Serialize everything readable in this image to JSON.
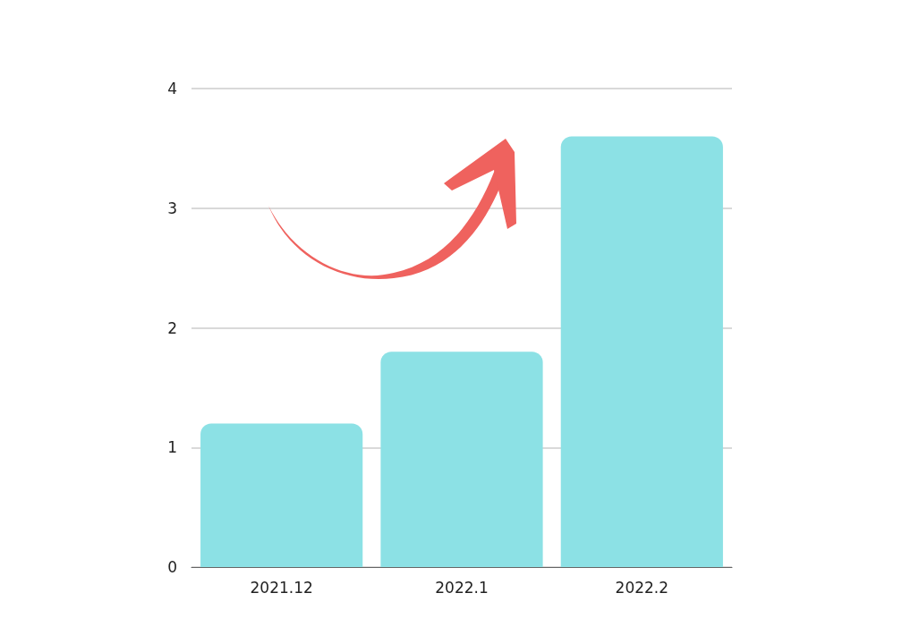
{
  "chart_data": {
    "type": "bar",
    "categories": [
      "2021.12",
      "2022.1",
      "2022.2"
    ],
    "values": [
      1.2,
      1.8,
      3.6
    ],
    "color": "#8ce1e5",
    "ylim": [
      0,
      4
    ],
    "yticks": [
      0,
      1,
      2,
      3,
      4
    ],
    "grid": "y"
  }
}
